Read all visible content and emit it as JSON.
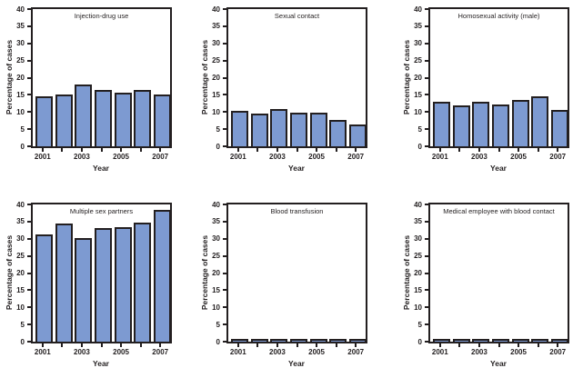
{
  "figure": {
    "background": "#ffffff",
    "bar_fill": "#7d9ad1",
    "bar_border": "#231f20",
    "axis_color": "#231f20",
    "text_color": "#231f20"
  },
  "chart_data": [
    {
      "type": "bar",
      "title": "Injection-drug use",
      "xlabel": "Year",
      "ylabel": "Percentage of cases",
      "categories": [
        "2001",
        "2002",
        "2003",
        "2004",
        "2005",
        "2006",
        "2007"
      ],
      "values": [
        14.5,
        15.0,
        18.0,
        16.3,
        15.7,
        16.5,
        15.0
      ],
      "ylim": [
        0,
        40
      ],
      "ytick_step": 5,
      "xtick_labels_shown": [
        "2001",
        "2003",
        "2005",
        "2007"
      ],
      "grid": false,
      "legend": "none"
    },
    {
      "type": "bar",
      "title": "Sexual contact",
      "xlabel": "Year",
      "ylabel": "Percentage of cases",
      "categories": [
        "2001",
        "2002",
        "2003",
        "2004",
        "2005",
        "2006",
        "2007"
      ],
      "values": [
        10.4,
        9.5,
        10.8,
        9.9,
        9.8,
        7.8,
        6.4
      ],
      "ylim": [
        0,
        40
      ],
      "ytick_step": 5,
      "xtick_labels_shown": [
        "2001",
        "2003",
        "2005",
        "2007"
      ],
      "grid": false,
      "legend": "none"
    },
    {
      "type": "bar",
      "title": "Homosexual activity (male)",
      "xlabel": "Year",
      "ylabel": "Percentage of cases",
      "categories": [
        "2001",
        "2002",
        "2003",
        "2004",
        "2005",
        "2006",
        "2007"
      ],
      "values": [
        13.1,
        12.0,
        13.1,
        12.2,
        13.5,
        14.7,
        10.7
      ],
      "ylim": [
        0,
        40
      ],
      "ytick_step": 5,
      "xtick_labels_shown": [
        "2001",
        "2003",
        "2005",
        "2007"
      ],
      "grid": false,
      "legend": "none"
    },
    {
      "type": "bar",
      "title": "Multiple sex partners",
      "xlabel": "Year",
      "ylabel": "Percentage of cases",
      "categories": [
        "2001",
        "2002",
        "2003",
        "2004",
        "2005",
        "2006",
        "2007"
      ],
      "values": [
        31.3,
        34.5,
        30.2,
        33.1,
        33.3,
        34.6,
        38.4
      ],
      "ylim": [
        0,
        40
      ],
      "ytick_step": 5,
      "xtick_labels_shown": [
        "2001",
        "2003",
        "2005",
        "2007"
      ],
      "grid": false,
      "legend": "none"
    },
    {
      "type": "bar",
      "title": "Blood transfusion",
      "xlabel": "Year",
      "ylabel": "Percentage of cases",
      "categories": [
        "2001",
        "2002",
        "2003",
        "2004",
        "2005",
        "2006",
        "2007"
      ],
      "values": [
        0.9,
        0.6,
        0.6,
        0.9,
        0.5,
        0.8,
        0.9
      ],
      "ylim": [
        0,
        40
      ],
      "ytick_step": 5,
      "xtick_labels_shown": [
        "2001",
        "2003",
        "2005",
        "2007"
      ],
      "grid": false,
      "legend": "none"
    },
    {
      "type": "bar",
      "title": "Medical employee with blood contact",
      "xlabel": "Year",
      "ylabel": "Percentage of cases",
      "categories": [
        "2001",
        "2002",
        "2003",
        "2004",
        "2005",
        "2006",
        "2007"
      ],
      "values": [
        0.9,
        0.7,
        0.7,
        0.7,
        0.9,
        0.6,
        0.7
      ],
      "ylim": [
        0,
        40
      ],
      "ytick_step": 5,
      "xtick_labels_shown": [
        "2001",
        "2003",
        "2005",
        "2007"
      ],
      "grid": false,
      "legend": "none"
    }
  ]
}
